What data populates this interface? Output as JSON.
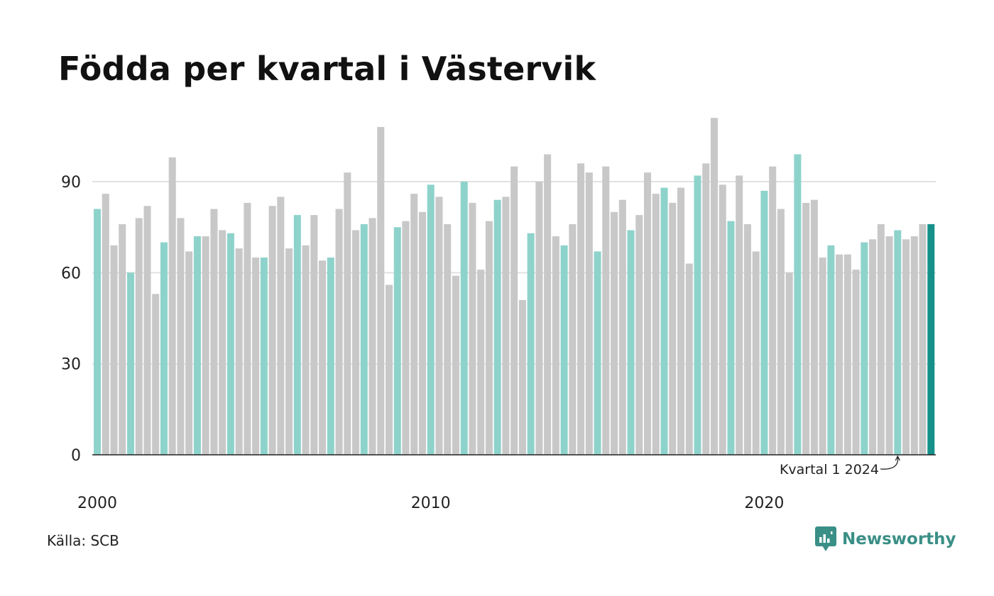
{
  "title": "Födda per kvartal i Västervik",
  "source": "Källa: SCB",
  "brand": "Newsworthy",
  "colors": {
    "highlight": "#8ed3cb",
    "regular": "#c8c8c8",
    "latest": "#16918a",
    "grid": "#e1e1e1",
    "axis": "#222222"
  },
  "chart_data": {
    "type": "bar",
    "title": "Födda per kvartal i Västervik",
    "xlabel": "",
    "ylabel": "",
    "ylim": [
      0,
      115
    ],
    "yticks": [
      0,
      30,
      60,
      90
    ],
    "xtick_labels": [
      {
        "label": "2000",
        "index": 0
      },
      {
        "label": "2010",
        "index": 40
      },
      {
        "label": "2020",
        "index": 80
      }
    ],
    "grid": true,
    "highlight_rule": "first quarter of each year highlighted; latest quarter in dark teal",
    "annotation": {
      "text": "Kvartal 1 2024",
      "target_index": 96
    },
    "start_year": 2000,
    "values": [
      81,
      86,
      69,
      76,
      60,
      78,
      82,
      53,
      70,
      98,
      78,
      67,
      72,
      72,
      81,
      74,
      73,
      68,
      83,
      65,
      65,
      82,
      85,
      68,
      79,
      69,
      79,
      64,
      65,
      81,
      93,
      74,
      76,
      78,
      108,
      56,
      75,
      77,
      86,
      80,
      89,
      85,
      76,
      59,
      90,
      83,
      61,
      77,
      84,
      85,
      95,
      51,
      73,
      90,
      99,
      72,
      69,
      76,
      96,
      93,
      67,
      95,
      80,
      84,
      74,
      79,
      93,
      86,
      88,
      83,
      88,
      63,
      92,
      96,
      111,
      89,
      77,
      92,
      76,
      67,
      87,
      95,
      81,
      60,
      99,
      83,
      84,
      65,
      69,
      66,
      66,
      61,
      70,
      71,
      76,
      72,
      74,
      71,
      72,
      76,
      76
    ]
  }
}
